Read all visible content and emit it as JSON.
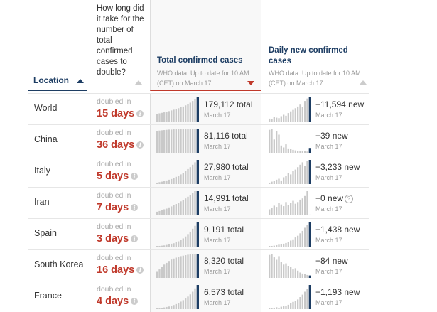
{
  "header": {
    "location": "Location",
    "doubling": "How long did it take for the number of total confirmed cases to double?",
    "total_title": "Total confirmed cases",
    "total_sub": "WHO data. Up to date for 10 AM (CET) on March 17.",
    "new_title": "Daily new confirmed cases",
    "new_sub": "WHO data. Up to date for 10 AM (CET) on March 17."
  },
  "doubled_in_label": "doubled in",
  "colors": {
    "navy": "#1d3d63",
    "red": "#c0392b",
    "bar": "#c9c9c9"
  },
  "rows": [
    {
      "country": "World",
      "days": "15 days",
      "total": "179,112 total",
      "date": "March 17",
      "new": "+11,594 new",
      "tot_bars": [
        0.31,
        0.34,
        0.36,
        0.38,
        0.4,
        0.43,
        0.46,
        0.49,
        0.52,
        0.55,
        0.59,
        0.62,
        0.67,
        0.72,
        0.78,
        0.85,
        0.92,
        1.0
      ],
      "new_bars": [
        0.12,
        0.1,
        0.2,
        0.16,
        0.14,
        0.22,
        0.28,
        0.24,
        0.35,
        0.42,
        0.48,
        0.55,
        0.62,
        0.7,
        0.6,
        0.85,
        0.95,
        1.0
      ]
    },
    {
      "country": "China",
      "days": "36 days",
      "total": "81,116 total",
      "date": "March 17",
      "new": "+39 new",
      "tot_bars": [
        0.9,
        0.92,
        0.93,
        0.94,
        0.95,
        0.96,
        0.96,
        0.97,
        0.97,
        0.98,
        0.98,
        0.98,
        0.99,
        0.99,
        0.99,
        1.0,
        1.0,
        1.0
      ],
      "new_bars": [
        0.95,
        1.0,
        0.55,
        0.9,
        0.75,
        0.3,
        0.22,
        0.35,
        0.18,
        0.15,
        0.12,
        0.1,
        0.08,
        0.08,
        0.06,
        0.06,
        0.05,
        0.2
      ]
    },
    {
      "country": "Italy",
      "days": "5 days",
      "total": "27,980 total",
      "date": "March 17",
      "new": "+3,233 new",
      "tot_bars": [
        0.06,
        0.08,
        0.1,
        0.12,
        0.15,
        0.18,
        0.21,
        0.25,
        0.3,
        0.34,
        0.4,
        0.47,
        0.54,
        0.62,
        0.7,
        0.8,
        0.9,
        1.0
      ],
      "new_bars": [
        0.06,
        0.1,
        0.12,
        0.18,
        0.22,
        0.15,
        0.28,
        0.35,
        0.45,
        0.4,
        0.55,
        0.6,
        0.7,
        0.8,
        0.9,
        0.75,
        0.95,
        1.0
      ]
    },
    {
      "country": "Iran",
      "days": "7 days",
      "total": "14,991 total",
      "date": "March 17",
      "new": "+0 new",
      "tot_bars": [
        0.15,
        0.18,
        0.21,
        0.25,
        0.28,
        0.33,
        0.37,
        0.42,
        0.47,
        0.52,
        0.58,
        0.64,
        0.7,
        0.77,
        0.84,
        0.92,
        1.0,
        1.0
      ],
      "new_bars": [
        0.25,
        0.3,
        0.4,
        0.35,
        0.5,
        0.45,
        0.38,
        0.55,
        0.42,
        0.5,
        0.6,
        0.48,
        0.55,
        0.65,
        0.7,
        0.8,
        1.0,
        0.03
      ]
    },
    {
      "country": "Spain",
      "days": "3 days",
      "total": "9,191 total",
      "date": "March 17",
      "new": "+1,438 new",
      "tot_bars": [
        0.02,
        0.03,
        0.04,
        0.05,
        0.07,
        0.09,
        0.12,
        0.14,
        0.18,
        0.22,
        0.28,
        0.34,
        0.42,
        0.52,
        0.62,
        0.74,
        0.86,
        1.0
      ],
      "new_bars": [
        0.02,
        0.03,
        0.04,
        0.06,
        0.08,
        0.1,
        0.12,
        0.15,
        0.2,
        0.25,
        0.3,
        0.38,
        0.45,
        0.55,
        0.65,
        0.78,
        0.9,
        1.0
      ]
    },
    {
      "country": "South Korea",
      "days": "16 days",
      "total": "8,320 total",
      "date": "March 17",
      "new": "+84 new",
      "tot_bars": [
        0.25,
        0.35,
        0.45,
        0.55,
        0.62,
        0.7,
        0.76,
        0.8,
        0.84,
        0.87,
        0.9,
        0.92,
        0.94,
        0.96,
        0.97,
        0.98,
        0.99,
        1.0
      ],
      "new_bars": [
        0.95,
        1.0,
        0.85,
        0.75,
        0.9,
        0.65,
        0.55,
        0.6,
        0.5,
        0.45,
        0.35,
        0.4,
        0.3,
        0.22,
        0.18,
        0.15,
        0.12,
        0.1
      ]
    },
    {
      "country": "France",
      "days": "4 days",
      "total": "6,573 total",
      "date": "March 17",
      "new": "+1,193 new",
      "tot_bars": [
        0.03,
        0.04,
        0.05,
        0.07,
        0.09,
        0.11,
        0.14,
        0.17,
        0.21,
        0.26,
        0.31,
        0.37,
        0.44,
        0.52,
        0.61,
        0.72,
        0.86,
        1.0
      ],
      "new_bars": [
        0.02,
        0.04,
        0.06,
        0.08,
        0.06,
        0.1,
        0.14,
        0.12,
        0.18,
        0.24,
        0.3,
        0.35,
        0.4,
        0.5,
        0.6,
        0.72,
        0.85,
        1.0
      ]
    }
  ]
}
